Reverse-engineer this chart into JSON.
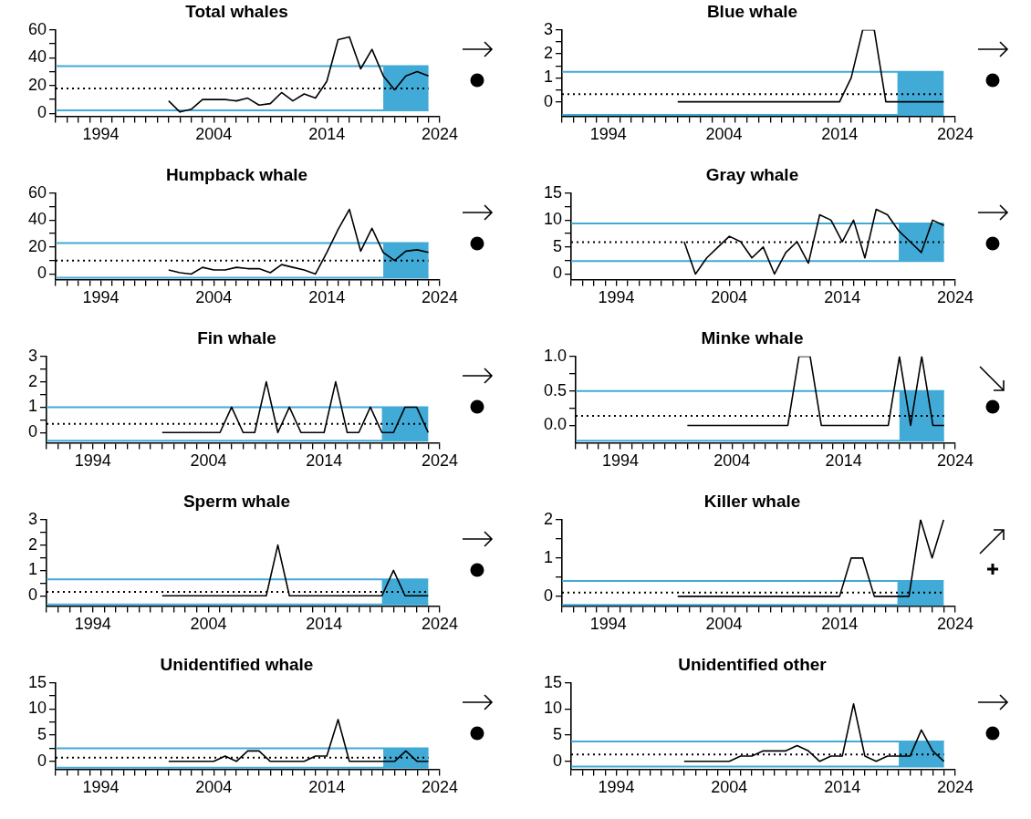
{
  "chart_data": [
    {
      "type": "line",
      "title": "Total whales",
      "x": [
        2000,
        2001,
        2002,
        2003,
        2004,
        2005,
        2006,
        2007,
        2008,
        2009,
        2010,
        2011,
        2012,
        2013,
        2014,
        2015,
        2016,
        2017,
        2018,
        2019,
        2020,
        2021,
        2022,
        2023
      ],
      "values": [
        9,
        1,
        3,
        10,
        10,
        10,
        9,
        11,
        6,
        7,
        15,
        9,
        14,
        11,
        23,
        53,
        55,
        32,
        46,
        27,
        17,
        27,
        30,
        27
      ],
      "color": "#000000",
      "xlim": [
        1990,
        2024
      ],
      "ylim": [
        -2,
        60
      ],
      "xticks": [
        {
          "value": 1990,
          "label": null
        },
        {
          "value": 1991,
          "label": null
        },
        {
          "value": 1992,
          "label": null
        },
        {
          "value": 1993,
          "label": null
        },
        1994,
        {
          "value": 1995,
          "label": null
        },
        {
          "value": 1996,
          "label": null
        },
        {
          "value": 1997,
          "label": null
        },
        {
          "value": 1998,
          "label": null
        },
        {
          "value": 1999,
          "label": null
        },
        {
          "value": 2000,
          "label": null
        },
        {
          "value": 2001,
          "label": null
        },
        {
          "value": 2002,
          "label": null
        },
        {
          "value": 2003,
          "label": null
        },
        2004,
        {
          "value": 2005,
          "label": null
        },
        {
          "value": 2006,
          "label": null
        },
        {
          "value": 2007,
          "label": null
        },
        {
          "value": 2008,
          "label": null
        },
        {
          "value": 2009,
          "label": null
        },
        {
          "value": 2010,
          "label": null
        },
        {
          "value": 2011,
          "label": null
        },
        {
          "value": 2012,
          "label": null
        },
        {
          "value": 2013,
          "label": null
        },
        2014,
        {
          "value": 2015,
          "label": null
        },
        {
          "value": 2016,
          "label": null
        },
        {
          "value": 2017,
          "label": null
        },
        {
          "value": 2018,
          "label": null
        },
        {
          "value": 2019,
          "label": null
        },
        {
          "value": 2020,
          "label": null
        },
        {
          "value": 2021,
          "label": null
        },
        {
          "value": 2022,
          "label": null
        },
        {
          "value": 2023,
          "label": null
        },
        2024
      ],
      "yticks": [
        0,
        {
          "value": 10,
          "label": null
        },
        20,
        {
          "value": 30,
          "label": null
        },
        40,
        {
          "value": 50,
          "label": null
        },
        60
      ],
      "ref_lines": [
        {
          "axis": "y",
          "value": 34,
          "color": "#41aad6"
        },
        {
          "axis": "y",
          "value": 18,
          "color": "#000000",
          "line_style": "dotted"
        },
        {
          "axis": "y",
          "value": 2.2,
          "color": "#41aad6"
        }
      ],
      "bands": [
        {
          "axis": "x",
          "from": 2019,
          "to": 2023,
          "color": "#41aad6"
        }
      ],
      "grid": false,
      "legend": false
    },
    {
      "type": "line",
      "title": "Blue whale",
      "x": [
        2000,
        2001,
        2002,
        2003,
        2004,
        2005,
        2006,
        2007,
        2008,
        2009,
        2010,
        2011,
        2012,
        2013,
        2014,
        2015,
        2016,
        2017,
        2018,
        2019,
        2020,
        2021,
        2022,
        2023
      ],
      "values": [
        0,
        0,
        0,
        0,
        0,
        0,
        0,
        0,
        0,
        0,
        0,
        0,
        0,
        0,
        0,
        1,
        3,
        3,
        0,
        0,
        0,
        0,
        0,
        0
      ],
      "color": "#000000",
      "xlim": [
        1990,
        2024
      ],
      "ylim": [
        -0.6,
        3
      ],
      "xticks": [
        {
          "value": 1990,
          "label": null
        },
        {
          "value": 1991,
          "label": null
        },
        {
          "value": 1992,
          "label": null
        },
        {
          "value": 1993,
          "label": null
        },
        1994,
        {
          "value": 1995,
          "label": null
        },
        {
          "value": 1996,
          "label": null
        },
        {
          "value": 1997,
          "label": null
        },
        {
          "value": 1998,
          "label": null
        },
        {
          "value": 1999,
          "label": null
        },
        {
          "value": 2000,
          "label": null
        },
        {
          "value": 2001,
          "label": null
        },
        {
          "value": 2002,
          "label": null
        },
        {
          "value": 2003,
          "label": null
        },
        2004,
        {
          "value": 2005,
          "label": null
        },
        {
          "value": 2006,
          "label": null
        },
        {
          "value": 2007,
          "label": null
        },
        {
          "value": 2008,
          "label": null
        },
        {
          "value": 2009,
          "label": null
        },
        {
          "value": 2010,
          "label": null
        },
        {
          "value": 2011,
          "label": null
        },
        {
          "value": 2012,
          "label": null
        },
        {
          "value": 2013,
          "label": null
        },
        2014,
        {
          "value": 2015,
          "label": null
        },
        {
          "value": 2016,
          "label": null
        },
        {
          "value": 2017,
          "label": null
        },
        {
          "value": 2018,
          "label": null
        },
        {
          "value": 2019,
          "label": null
        },
        {
          "value": 2020,
          "label": null
        },
        {
          "value": 2021,
          "label": null
        },
        {
          "value": 2022,
          "label": null
        },
        {
          "value": 2023,
          "label": null
        },
        2024
      ],
      "yticks": [
        0,
        {
          "value": 0.5,
          "label": null
        },
        1,
        {
          "value": 1.5,
          "label": null
        },
        2,
        {
          "value": 2.5,
          "label": null
        },
        3
      ],
      "ref_lines": [
        {
          "axis": "y",
          "value": 1.25,
          "color": "#41aad6"
        },
        {
          "axis": "y",
          "value": 0.32,
          "color": "#000000",
          "line_style": "dotted"
        },
        {
          "axis": "y",
          "value": -0.55,
          "color": "#41aad6"
        }
      ],
      "bands": [
        {
          "axis": "x",
          "from": 2019,
          "to": 2023,
          "color": "#41aad6"
        }
      ],
      "grid": false,
      "legend": false
    },
    {
      "type": "line",
      "title": "Humpback whale",
      "x": [
        2000,
        2001,
        2002,
        2003,
        2004,
        2005,
        2006,
        2007,
        2008,
        2009,
        2010,
        2011,
        2012,
        2013,
        2014,
        2015,
        2016,
        2017,
        2018,
        2019,
        2020,
        2021,
        2022,
        2023
      ],
      "values": [
        3,
        1,
        0,
        5,
        3,
        3,
        5,
        4,
        4,
        1,
        7,
        5,
        3,
        0,
        16,
        33,
        48,
        17,
        34,
        16,
        10,
        17,
        18,
        16
      ],
      "color": "#000000",
      "xlim": [
        1990,
        2024
      ],
      "ylim": [
        -4,
        60
      ],
      "xticks": [
        {
          "value": 1990,
          "label": null
        },
        {
          "value": 1991,
          "label": null
        },
        {
          "value": 1992,
          "label": null
        },
        {
          "value": 1993,
          "label": null
        },
        1994,
        {
          "value": 1995,
          "label": null
        },
        {
          "value": 1996,
          "label": null
        },
        {
          "value": 1997,
          "label": null
        },
        {
          "value": 1998,
          "label": null
        },
        {
          "value": 1999,
          "label": null
        },
        {
          "value": 2000,
          "label": null
        },
        {
          "value": 2001,
          "label": null
        },
        {
          "value": 2002,
          "label": null
        },
        {
          "value": 2003,
          "label": null
        },
        2004,
        {
          "value": 2005,
          "label": null
        },
        {
          "value": 2006,
          "label": null
        },
        {
          "value": 2007,
          "label": null
        },
        {
          "value": 2008,
          "label": null
        },
        {
          "value": 2009,
          "label": null
        },
        {
          "value": 2010,
          "label": null
        },
        {
          "value": 2011,
          "label": null
        },
        {
          "value": 2012,
          "label": null
        },
        {
          "value": 2013,
          "label": null
        },
        2014,
        {
          "value": 2015,
          "label": null
        },
        {
          "value": 2016,
          "label": null
        },
        {
          "value": 2017,
          "label": null
        },
        {
          "value": 2018,
          "label": null
        },
        {
          "value": 2019,
          "label": null
        },
        {
          "value": 2020,
          "label": null
        },
        {
          "value": 2021,
          "label": null
        },
        {
          "value": 2022,
          "label": null
        },
        {
          "value": 2023,
          "label": null
        },
        2024
      ],
      "yticks": [
        0,
        {
          "value": 10,
          "label": null
        },
        20,
        {
          "value": 30,
          "label": null
        },
        40,
        {
          "value": 50,
          "label": null
        },
        60
      ],
      "ref_lines": [
        {
          "axis": "y",
          "value": 23,
          "color": "#41aad6"
        },
        {
          "axis": "y",
          "value": 10,
          "color": "#000000",
          "line_style": "dotted"
        },
        {
          "axis": "y",
          "value": -2.7,
          "color": "#41aad6"
        }
      ],
      "bands": [
        {
          "axis": "x",
          "from": 2019,
          "to": 2023,
          "color": "#41aad6"
        }
      ],
      "grid": false,
      "legend": false
    },
    {
      "type": "line",
      "title": "Gray whale",
      "x": [
        2000,
        2001,
        2002,
        2003,
        2004,
        2005,
        2006,
        2007,
        2008,
        2009,
        2010,
        2011,
        2012,
        2013,
        2014,
        2015,
        2016,
        2017,
        2018,
        2019,
        2020,
        2021,
        2022,
        2023
      ],
      "values": [
        6,
        0,
        3,
        5,
        7,
        6,
        3,
        5,
        0,
        4,
        6,
        2,
        11,
        10,
        6,
        10,
        3,
        12,
        11,
        8,
        6,
        4,
        10,
        9
      ],
      "color": "#000000",
      "xlim": [
        1990,
        2024
      ],
      "ylim": [
        -1,
        15
      ],
      "xticks": [
        {
          "value": 1990,
          "label": null
        },
        {
          "value": 1991,
          "label": null
        },
        {
          "value": 1992,
          "label": null
        },
        {
          "value": 1993,
          "label": null
        },
        1994,
        {
          "value": 1995,
          "label": null
        },
        {
          "value": 1996,
          "label": null
        },
        {
          "value": 1997,
          "label": null
        },
        {
          "value": 1998,
          "label": null
        },
        {
          "value": 1999,
          "label": null
        },
        {
          "value": 2000,
          "label": null
        },
        {
          "value": 2001,
          "label": null
        },
        {
          "value": 2002,
          "label": null
        },
        {
          "value": 2003,
          "label": null
        },
        2004,
        {
          "value": 2005,
          "label": null
        },
        {
          "value": 2006,
          "label": null
        },
        {
          "value": 2007,
          "label": null
        },
        {
          "value": 2008,
          "label": null
        },
        {
          "value": 2009,
          "label": null
        },
        {
          "value": 2010,
          "label": null
        },
        {
          "value": 2011,
          "label": null
        },
        {
          "value": 2012,
          "label": null
        },
        {
          "value": 2013,
          "label": null
        },
        2014,
        {
          "value": 2015,
          "label": null
        },
        {
          "value": 2016,
          "label": null
        },
        {
          "value": 2017,
          "label": null
        },
        {
          "value": 2018,
          "label": null
        },
        {
          "value": 2019,
          "label": null
        },
        {
          "value": 2020,
          "label": null
        },
        {
          "value": 2021,
          "label": null
        },
        {
          "value": 2022,
          "label": null
        },
        {
          "value": 2023,
          "label": null
        },
        2024
      ],
      "yticks": [
        0,
        {
          "value": 2.5,
          "label": null
        },
        5,
        {
          "value": 7.5,
          "label": null
        },
        10,
        {
          "value": 12.5,
          "label": null
        },
        15
      ],
      "ref_lines": [
        {
          "axis": "y",
          "value": 9.4,
          "color": "#41aad6"
        },
        {
          "axis": "y",
          "value": 5.9,
          "color": "#000000",
          "line_style": "dotted"
        },
        {
          "axis": "y",
          "value": 2.4,
          "color": "#41aad6"
        }
      ],
      "bands": [
        {
          "axis": "x",
          "from": 2019,
          "to": 2023,
          "color": "#41aad6"
        }
      ],
      "grid": false,
      "legend": false
    },
    {
      "type": "line",
      "title": "Fin whale",
      "x": [
        2000,
        2001,
        2002,
        2003,
        2004,
        2005,
        2006,
        2007,
        2008,
        2009,
        2010,
        2011,
        2012,
        2013,
        2014,
        2015,
        2016,
        2017,
        2018,
        2019,
        2020,
        2021,
        2022,
        2023
      ],
      "values": [
        0,
        0,
        0,
        0,
        0,
        0,
        1,
        0,
        0,
        2,
        0,
        1,
        0,
        0,
        0,
        2,
        0,
        0,
        1,
        0,
        0,
        1,
        1,
        0
      ],
      "color": "#000000",
      "xlim": [
        1990,
        2024
      ],
      "ylim": [
        -0.4,
        3
      ],
      "xticks": [
        {
          "value": 1990,
          "label": null
        },
        {
          "value": 1991,
          "label": null
        },
        {
          "value": 1992,
          "label": null
        },
        {
          "value": 1993,
          "label": null
        },
        1994,
        {
          "value": 1995,
          "label": null
        },
        {
          "value": 1996,
          "label": null
        },
        {
          "value": 1997,
          "label": null
        },
        {
          "value": 1998,
          "label": null
        },
        {
          "value": 1999,
          "label": null
        },
        {
          "value": 2000,
          "label": null
        },
        {
          "value": 2001,
          "label": null
        },
        {
          "value": 2002,
          "label": null
        },
        {
          "value": 2003,
          "label": null
        },
        2004,
        {
          "value": 2005,
          "label": null
        },
        {
          "value": 2006,
          "label": null
        },
        {
          "value": 2007,
          "label": null
        },
        {
          "value": 2008,
          "label": null
        },
        {
          "value": 2009,
          "label": null
        },
        {
          "value": 2010,
          "label": null
        },
        {
          "value": 2011,
          "label": null
        },
        {
          "value": 2012,
          "label": null
        },
        {
          "value": 2013,
          "label": null
        },
        2014,
        {
          "value": 2015,
          "label": null
        },
        {
          "value": 2016,
          "label": null
        },
        {
          "value": 2017,
          "label": null
        },
        {
          "value": 2018,
          "label": null
        },
        {
          "value": 2019,
          "label": null
        },
        {
          "value": 2020,
          "label": null
        },
        {
          "value": 2021,
          "label": null
        },
        {
          "value": 2022,
          "label": null
        },
        {
          "value": 2023,
          "label": null
        },
        2024
      ],
      "yticks": [
        0,
        {
          "value": 0.5,
          "label": null
        },
        1,
        {
          "value": 1.5,
          "label": null
        },
        2,
        {
          "value": 2.5,
          "label": null
        },
        3
      ],
      "ref_lines": [
        {
          "axis": "y",
          "value": 1,
          "color": "#41aad6"
        },
        {
          "axis": "y",
          "value": 0.34,
          "color": "#000000",
          "line_style": "dotted"
        },
        {
          "axis": "y",
          "value": -0.32,
          "color": "#41aad6"
        }
      ],
      "bands": [
        {
          "axis": "x",
          "from": 2019,
          "to": 2023,
          "color": "#41aad6"
        }
      ],
      "grid": false,
      "legend": false
    },
    {
      "type": "line",
      "title": "Minke whale",
      "x": [
        2000,
        2001,
        2002,
        2003,
        2004,
        2005,
        2006,
        2007,
        2008,
        2009,
        2010,
        2011,
        2012,
        2013,
        2014,
        2015,
        2016,
        2017,
        2018,
        2019,
        2020,
        2021,
        2022,
        2023
      ],
      "values": [
        0,
        0,
        0,
        0,
        0,
        0,
        0,
        0,
        0,
        0,
        1,
        1,
        0,
        0,
        0,
        0,
        0,
        0,
        0,
        1,
        0,
        1,
        0,
        0
      ],
      "color": "#000000",
      "xlim": [
        1990,
        2024
      ],
      "ylim": [
        -0.25,
        1
      ],
      "xticks": [
        {
          "value": 1990,
          "label": null
        },
        {
          "value": 1991,
          "label": null
        },
        {
          "value": 1992,
          "label": null
        },
        {
          "value": 1993,
          "label": null
        },
        1994,
        {
          "value": 1995,
          "label": null
        },
        {
          "value": 1996,
          "label": null
        },
        {
          "value": 1997,
          "label": null
        },
        {
          "value": 1998,
          "label": null
        },
        {
          "value": 1999,
          "label": null
        },
        {
          "value": 2000,
          "label": null
        },
        {
          "value": 2001,
          "label": null
        },
        {
          "value": 2002,
          "label": null
        },
        {
          "value": 2003,
          "label": null
        },
        2004,
        {
          "value": 2005,
          "label": null
        },
        {
          "value": 2006,
          "label": null
        },
        {
          "value": 2007,
          "label": null
        },
        {
          "value": 2008,
          "label": null
        },
        {
          "value": 2009,
          "label": null
        },
        {
          "value": 2010,
          "label": null
        },
        {
          "value": 2011,
          "label": null
        },
        {
          "value": 2012,
          "label": null
        },
        {
          "value": 2013,
          "label": null
        },
        2014,
        {
          "value": 2015,
          "label": null
        },
        {
          "value": 2016,
          "label": null
        },
        {
          "value": 2017,
          "label": null
        },
        {
          "value": 2018,
          "label": null
        },
        {
          "value": 2019,
          "label": null
        },
        {
          "value": 2020,
          "label": null
        },
        {
          "value": 2021,
          "label": null
        },
        {
          "value": 2022,
          "label": null
        },
        {
          "value": 2023,
          "label": null
        },
        2024
      ],
      "yticks": [
        {
          "value": 0,
          "label": "0.0"
        },
        {
          "value": 0.25,
          "label": null
        },
        {
          "value": 0.5,
          "label": "0.5"
        },
        {
          "value": 0.75,
          "label": null
        },
        {
          "value": 1,
          "label": "1.0"
        }
      ],
      "ref_lines": [
        {
          "axis": "y",
          "value": 0.5,
          "color": "#41aad6"
        },
        {
          "axis": "y",
          "value": 0.14,
          "color": "#000000",
          "line_style": "dotted"
        },
        {
          "axis": "y",
          "value": -0.22,
          "color": "#41aad6"
        }
      ],
      "bands": [
        {
          "axis": "x",
          "from": 2019,
          "to": 2023,
          "color": "#41aad6"
        }
      ],
      "grid": false,
      "legend": false
    },
    {
      "type": "line",
      "title": "Sperm whale",
      "x": [
        2000,
        2001,
        2002,
        2003,
        2004,
        2005,
        2006,
        2007,
        2008,
        2009,
        2010,
        2011,
        2012,
        2013,
        2014,
        2015,
        2016,
        2017,
        2018,
        2019,
        2020,
        2021,
        2022,
        2023
      ],
      "values": [
        0,
        0,
        0,
        0,
        0,
        0,
        0,
        0,
        0,
        0,
        2,
        0,
        0,
        0,
        0,
        0,
        0,
        0,
        0,
        0,
        1,
        0,
        0,
        0
      ],
      "color": "#000000",
      "xlim": [
        1990,
        2024
      ],
      "ylim": [
        -0.4,
        3
      ],
      "xticks": [
        {
          "value": 1990,
          "label": null
        },
        {
          "value": 1991,
          "label": null
        },
        {
          "value": 1992,
          "label": null
        },
        {
          "value": 1993,
          "label": null
        },
        1994,
        {
          "value": 1995,
          "label": null
        },
        {
          "value": 1996,
          "label": null
        },
        {
          "value": 1997,
          "label": null
        },
        {
          "value": 1998,
          "label": null
        },
        {
          "value": 1999,
          "label": null
        },
        {
          "value": 2000,
          "label": null
        },
        {
          "value": 2001,
          "label": null
        },
        {
          "value": 2002,
          "label": null
        },
        {
          "value": 2003,
          "label": null
        },
        2004,
        {
          "value": 2005,
          "label": null
        },
        {
          "value": 2006,
          "label": null
        },
        {
          "value": 2007,
          "label": null
        },
        {
          "value": 2008,
          "label": null
        },
        {
          "value": 2009,
          "label": null
        },
        {
          "value": 2010,
          "label": null
        },
        {
          "value": 2011,
          "label": null
        },
        {
          "value": 2012,
          "label": null
        },
        {
          "value": 2013,
          "label": null
        },
        2014,
        {
          "value": 2015,
          "label": null
        },
        {
          "value": 2016,
          "label": null
        },
        {
          "value": 2017,
          "label": null
        },
        {
          "value": 2018,
          "label": null
        },
        {
          "value": 2019,
          "label": null
        },
        {
          "value": 2020,
          "label": null
        },
        {
          "value": 2021,
          "label": null
        },
        {
          "value": 2022,
          "label": null
        },
        {
          "value": 2023,
          "label": null
        },
        2024
      ],
      "yticks": [
        0,
        {
          "value": 0.5,
          "label": null
        },
        1,
        {
          "value": 1.5,
          "label": null
        },
        2,
        {
          "value": 2.5,
          "label": null
        },
        3
      ],
      "ref_lines": [
        {
          "axis": "y",
          "value": 0.65,
          "color": "#41aad6"
        },
        {
          "axis": "y",
          "value": 0.15,
          "color": "#000000",
          "line_style": "dotted"
        },
        {
          "axis": "y",
          "value": -0.34,
          "color": "#41aad6"
        }
      ],
      "bands": [
        {
          "axis": "x",
          "from": 2019,
          "to": 2023,
          "color": "#41aad6"
        }
      ],
      "grid": false,
      "legend": false
    },
    {
      "type": "line",
      "title": "Killer whale",
      "x": [
        2000,
        2001,
        2002,
        2003,
        2004,
        2005,
        2006,
        2007,
        2008,
        2009,
        2010,
        2011,
        2012,
        2013,
        2014,
        2015,
        2016,
        2017,
        2018,
        2019,
        2020,
        2021,
        2022,
        2023
      ],
      "values": [
        0,
        0,
        0,
        0,
        0,
        0,
        0,
        0,
        0,
        0,
        0,
        0,
        0,
        0,
        0,
        1,
        1,
        0,
        0,
        0,
        0,
        2,
        1,
        2
      ],
      "color": "#000000",
      "xlim": [
        1990,
        2024
      ],
      "ylim": [
        -0.25,
        2
      ],
      "xticks": [
        {
          "value": 1990,
          "label": null
        },
        {
          "value": 1991,
          "label": null
        },
        {
          "value": 1992,
          "label": null
        },
        {
          "value": 1993,
          "label": null
        },
        1994,
        {
          "value": 1995,
          "label": null
        },
        {
          "value": 1996,
          "label": null
        },
        {
          "value": 1997,
          "label": null
        },
        {
          "value": 1998,
          "label": null
        },
        {
          "value": 1999,
          "label": null
        },
        {
          "value": 2000,
          "label": null
        },
        {
          "value": 2001,
          "label": null
        },
        {
          "value": 2002,
          "label": null
        },
        {
          "value": 2003,
          "label": null
        },
        2004,
        {
          "value": 2005,
          "label": null
        },
        {
          "value": 2006,
          "label": null
        },
        {
          "value": 2007,
          "label": null
        },
        {
          "value": 2008,
          "label": null
        },
        {
          "value": 2009,
          "label": null
        },
        {
          "value": 2010,
          "label": null
        },
        {
          "value": 2011,
          "label": null
        },
        {
          "value": 2012,
          "label": null
        },
        {
          "value": 2013,
          "label": null
        },
        2014,
        {
          "value": 2015,
          "label": null
        },
        {
          "value": 2016,
          "label": null
        },
        {
          "value": 2017,
          "label": null
        },
        {
          "value": 2018,
          "label": null
        },
        {
          "value": 2019,
          "label": null
        },
        {
          "value": 2020,
          "label": null
        },
        {
          "value": 2021,
          "label": null
        },
        {
          "value": 2022,
          "label": null
        },
        {
          "value": 2023,
          "label": null
        },
        2024
      ],
      "yticks": [
        0,
        {
          "value": 0.5,
          "label": null
        },
        1,
        {
          "value": 1.5,
          "label": null
        },
        2
      ],
      "ref_lines": [
        {
          "axis": "y",
          "value": 0.4,
          "color": "#41aad6"
        },
        {
          "axis": "y",
          "value": 0.1,
          "color": "#000000",
          "line_style": "dotted"
        },
        {
          "axis": "y",
          "value": -0.22,
          "color": "#41aad6"
        }
      ],
      "bands": [
        {
          "axis": "x",
          "from": 2019,
          "to": 2023,
          "color": "#41aad6"
        }
      ],
      "grid": false,
      "legend": false
    },
    {
      "type": "line",
      "title": "Unidentified whale",
      "x": [
        2000,
        2001,
        2002,
        2003,
        2004,
        2005,
        2006,
        2007,
        2008,
        2009,
        2010,
        2011,
        2012,
        2013,
        2014,
        2015,
        2016,
        2017,
        2018,
        2019,
        2020,
        2021,
        2022,
        2023
      ],
      "values": [
        0,
        0,
        0,
        0,
        0,
        1,
        0,
        2,
        2,
        0,
        0,
        0,
        0,
        1,
        1,
        8,
        0,
        0,
        0,
        0,
        0,
        2,
        0,
        0
      ],
      "color": "#000000",
      "xlim": [
        1990,
        2024
      ],
      "ylim": [
        -1.5,
        15
      ],
      "xticks": [
        {
          "value": 1990,
          "label": null
        },
        {
          "value": 1991,
          "label": null
        },
        {
          "value": 1992,
          "label": null
        },
        {
          "value": 1993,
          "label": null
        },
        1994,
        {
          "value": 1995,
          "label": null
        },
        {
          "value": 1996,
          "label": null
        },
        {
          "value": 1997,
          "label": null
        },
        {
          "value": 1998,
          "label": null
        },
        {
          "value": 1999,
          "label": null
        },
        {
          "value": 2000,
          "label": null
        },
        {
          "value": 2001,
          "label": null
        },
        {
          "value": 2002,
          "label": null
        },
        {
          "value": 2003,
          "label": null
        },
        2004,
        {
          "value": 2005,
          "label": null
        },
        {
          "value": 2006,
          "label": null
        },
        {
          "value": 2007,
          "label": null
        },
        {
          "value": 2008,
          "label": null
        },
        {
          "value": 2009,
          "label": null
        },
        {
          "value": 2010,
          "label": null
        },
        {
          "value": 2011,
          "label": null
        },
        {
          "value": 2012,
          "label": null
        },
        {
          "value": 2013,
          "label": null
        },
        2014,
        {
          "value": 2015,
          "label": null
        },
        {
          "value": 2016,
          "label": null
        },
        {
          "value": 2017,
          "label": null
        },
        {
          "value": 2018,
          "label": null
        },
        {
          "value": 2019,
          "label": null
        },
        {
          "value": 2020,
          "label": null
        },
        {
          "value": 2021,
          "label": null
        },
        {
          "value": 2022,
          "label": null
        },
        {
          "value": 2023,
          "label": null
        },
        2024
      ],
      "yticks": [
        0,
        {
          "value": 2.5,
          "label": null
        },
        5,
        {
          "value": 7.5,
          "label": null
        },
        10,
        {
          "value": 12.5,
          "label": null
        },
        15
      ],
      "ref_lines": [
        {
          "axis": "y",
          "value": 2.5,
          "color": "#41aad6"
        },
        {
          "axis": "y",
          "value": 0.7,
          "color": "#000000",
          "line_style": "dotted"
        },
        {
          "axis": "y",
          "value": -1.2,
          "color": "#41aad6"
        }
      ],
      "bands": [
        {
          "axis": "x",
          "from": 2019,
          "to": 2023,
          "color": "#41aad6"
        }
      ],
      "grid": false,
      "legend": false
    },
    {
      "type": "line",
      "title": "Unidentified other",
      "x": [
        2000,
        2001,
        2002,
        2003,
        2004,
        2005,
        2006,
        2007,
        2008,
        2009,
        2010,
        2011,
        2012,
        2013,
        2014,
        2015,
        2016,
        2017,
        2018,
        2019,
        2020,
        2021,
        2022,
        2023
      ],
      "values": [
        0,
        0,
        0,
        0,
        0,
        1,
        1,
        2,
        2,
        2,
        3,
        2,
        0,
        1,
        1,
        11,
        1,
        0,
        1,
        1,
        1,
        6,
        2,
        0
      ],
      "color": "#000000",
      "xlim": [
        1990,
        2024
      ],
      "ylim": [
        -1.5,
        15
      ],
      "xticks": [
        {
          "value": 1990,
          "label": null
        },
        {
          "value": 1991,
          "label": null
        },
        {
          "value": 1992,
          "label": null
        },
        {
          "value": 1993,
          "label": null
        },
        1994,
        {
          "value": 1995,
          "label": null
        },
        {
          "value": 1996,
          "label": null
        },
        {
          "value": 1997,
          "label": null
        },
        {
          "value": 1998,
          "label": null
        },
        {
          "value": 1999,
          "label": null
        },
        {
          "value": 2000,
          "label": null
        },
        {
          "value": 2001,
          "label": null
        },
        {
          "value": 2002,
          "label": null
        },
        {
          "value": 2003,
          "label": null
        },
        2004,
        {
          "value": 2005,
          "label": null
        },
        {
          "value": 2006,
          "label": null
        },
        {
          "value": 2007,
          "label": null
        },
        {
          "value": 2008,
          "label": null
        },
        {
          "value": 2009,
          "label": null
        },
        {
          "value": 2010,
          "label": null
        },
        {
          "value": 2011,
          "label": null
        },
        {
          "value": 2012,
          "label": null
        },
        {
          "value": 2013,
          "label": null
        },
        2014,
        {
          "value": 2015,
          "label": null
        },
        {
          "value": 2016,
          "label": null
        },
        {
          "value": 2017,
          "label": null
        },
        {
          "value": 2018,
          "label": null
        },
        {
          "value": 2019,
          "label": null
        },
        {
          "value": 2020,
          "label": null
        },
        {
          "value": 2021,
          "label": null
        },
        {
          "value": 2022,
          "label": null
        },
        {
          "value": 2023,
          "label": null
        },
        2024
      ],
      "yticks": [
        0,
        5,
        10,
        15
      ],
      "ref_lines": [
        {
          "axis": "y",
          "value": 3.8,
          "color": "#41aad6"
        },
        {
          "axis": "y",
          "value": 1.3,
          "color": "#000000",
          "line_style": "dotted"
        },
        {
          "axis": "y",
          "value": -1,
          "color": "#41aad6"
        }
      ],
      "bands": [
        {
          "axis": "x",
          "from": 2019,
          "to": 2023,
          "color": "#41aad6"
        }
      ],
      "grid": false,
      "legend": false
    }
  ]
}
